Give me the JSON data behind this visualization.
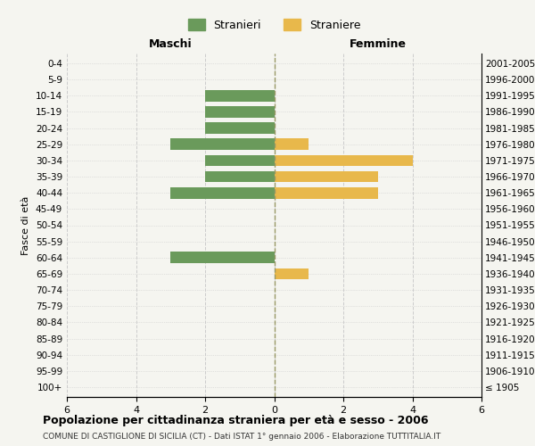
{
  "age_groups": [
    "100+",
    "95-99",
    "90-94",
    "85-89",
    "80-84",
    "75-79",
    "70-74",
    "65-69",
    "60-64",
    "55-59",
    "50-54",
    "45-49",
    "40-44",
    "35-39",
    "30-34",
    "25-29",
    "20-24",
    "15-19",
    "10-14",
    "5-9",
    "0-4"
  ],
  "birth_years": [
    "≤ 1905",
    "1906-1910",
    "1911-1915",
    "1916-1920",
    "1921-1925",
    "1926-1930",
    "1931-1935",
    "1936-1940",
    "1941-1945",
    "1946-1950",
    "1951-1955",
    "1956-1960",
    "1961-1965",
    "1966-1970",
    "1971-1975",
    "1976-1980",
    "1981-1985",
    "1986-1990",
    "1991-1995",
    "1996-2000",
    "2001-2005"
  ],
  "maschi": [
    0,
    0,
    0,
    0,
    0,
    0,
    0,
    0,
    3,
    0,
    0,
    0,
    3,
    2,
    2,
    3,
    2,
    2,
    2,
    0,
    0
  ],
  "femmine": [
    0,
    0,
    0,
    0,
    0,
    0,
    0,
    1,
    0,
    0,
    0,
    0,
    3,
    3,
    4,
    1,
    0,
    0,
    0,
    0,
    0
  ],
  "maschi_color": "#6a9a5b",
  "femmine_color": "#e8b84b",
  "title": "Popolazione per cittadinanza straniera per età e sesso - 2006",
  "subtitle": "COMUNE DI CASTIGLIONE DI SICILIA (CT) - Dati ISTAT 1° gennaio 2006 - Elaborazione TUTTITALIA.IT",
  "ylabel_left": "Fasce di età",
  "xlabel_left": "Maschi",
  "xlabel_right": "Femmine",
  "legend_maschi": "Stranieri",
  "legend_femmine": "Straniere",
  "xlim": 6,
  "bg_color": "#f5f5f0",
  "grid_color": "#cccccc",
  "centerline_color": "#999966"
}
